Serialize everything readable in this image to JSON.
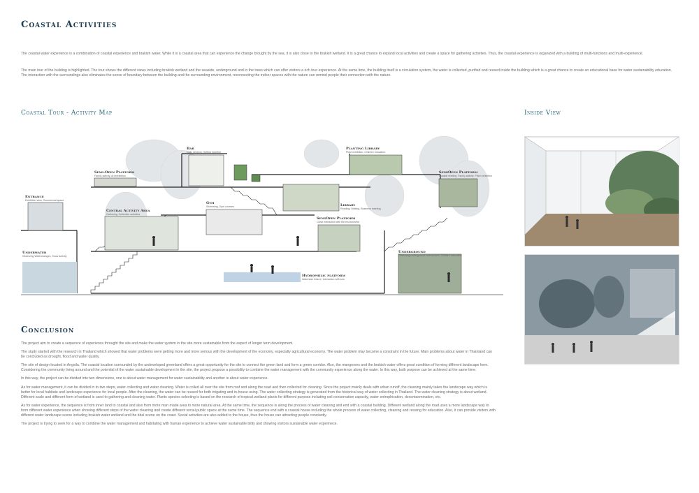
{
  "page": {
    "title": "Coastal Activities",
    "intro_1": "The coastal water experience is a combination of coastal experience and brakish water. While it is a coastal area that can experience the change brought by the sea, it is also close to the brakish wetland. It is a great chance to expand local activities and create a space for gathering activities. Thus, the coastal experience is organized with a building of multi-functions and multi-experience.",
    "intro_2": "The main tour of the building is highlighted. The tour shows the different views including brakish wetland and the seaside, underground and in the trees which can offer visitors a rich tour experience. At the same time, the building itself is a circulation system, the water is collected, purified and reused inside the building which is a great chance to create an educational base for water sustainability education. The interaction with the surroundings also eliminates the sense of boundary between the building and the surrounding environment, reconnecting the indoor spaces with the nature can remind people their connection with the nature."
  },
  "map": {
    "title": "Coastal Tour - Activity Map",
    "zones": [
      {
        "label": "Bar",
        "desc": "Daily drinking, Getting together"
      },
      {
        "label": "Planting Library",
        "desc": "Plant exhibition, Children education"
      },
      {
        "label": "Semi-Open Platform",
        "desc": "Family activity, Art exhibition"
      },
      {
        "label": "SemiOpen Platform",
        "desc": "Coastal reading, Family activity, Plant exhibition"
      },
      {
        "label": "Entrance",
        "desc": "Exhibition view, Commercial space"
      },
      {
        "label": "Gym",
        "desc": "Swimming, Gym courses"
      },
      {
        "label": "Library",
        "desc": "Reading, Waiting, Business meeting"
      },
      {
        "label": "Central Activity Area",
        "desc": "Gathering, Collective activities"
      },
      {
        "label": "SemiOpen Platform",
        "desc": "Close interaction with the environment"
      },
      {
        "label": "Underwater",
        "desc": "Observing Waterchanges, Snow activity"
      },
      {
        "label": "Underground",
        "desc": "Observing underground environment, Children education"
      },
      {
        "label": "Hydrophilic platform",
        "desc": "Waterside leisure, Interaction with sea"
      }
    ]
  },
  "inside": {
    "title": "Inside View"
  },
  "conclusion": {
    "title": "Conclusion",
    "paragraphs": [
      "The project aim to create a sequence of experience throught the site and make the water system in the site more sustainable from the aspect of longer term development.",
      "The study started with the research in Thailand which showed that water problems were getting more and more serious with the development of the economy, especially agricultural economy. The water problem may become a constraint in the future. Main problems about water in Thainland can be concluded as drought, flood and water quality.",
      "The site of design located in Angsila. The coastal location surrounded by the undeveloped greenland offers a great opportunity for the site to connect the green land and form a green corridor. Also, the mangroves and the brakish water offers great condition of forming different landscape form. Considering the community living around and the potential of the water sustainable development in the site, the project propose a possibility to combine the water management with the community experience along the water. In this way, both purpose can be achieved at the same time.",
      "In this way, the project can be divided into two dimensions, one is about water management for water sustainability and another is about water experience.",
      "As for water management, it can be divided in to two steps, water collecting and water cleaning. Water is colled all over the site from roof and along the road and then collected for cleaning. Since the project mainly deals with urban runoff, the cleaning mainly takes the landscape way which is better for local habitate and landscape experience for local people. After the cleaning, the water can be reused for both irrigating and in-house using. The water collecting strategy is generated from the historical way of water collecting in Thailand. The water cleaning strategy is about wetland. Different scale and different form of wetland is used to gathering and cleaning water. Plants species selecting is based on the research of tropical wetland plants for different purpose including soil conservation capacity, water entrophication, decontanmination, etc.",
      "As for water experience, the sequence is from inner land to coastal and also from more man made area to more natural area. At the same time, the sequence is along the process of water cleaning and end with a coastal building. Different wetland along the road uses a more landscape way to form different water experience when showing different steps of the water cleaning and create different social public space at the same time. The sequence end with a coastal house including the whole process of water collecting, cleaning and reusing for education. Also, it can provide visitors with different water landscape scene including brakish water wetland and the tidal scene on the coast. Social activities are also added to the house, thus the house can attracting people constantly.",
      "The project is trying to seek for a way to combine the water management and habitating with human experience to achieve water sustainable bility and showing visitors sustainable water experinece."
    ]
  }
}
